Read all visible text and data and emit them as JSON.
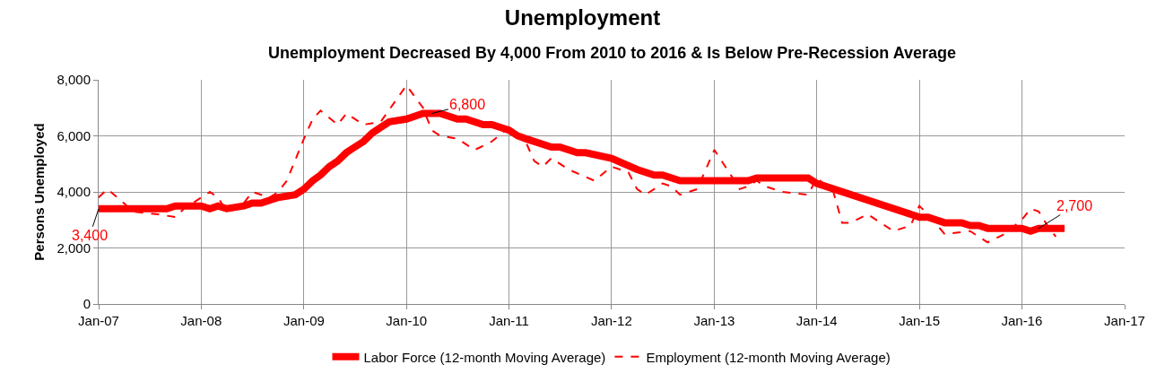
{
  "chart_data": {
    "type": "line",
    "title": "Unemployment",
    "subtitle": "Unemployment Decreased By 4,000 From 2010 to 2016 & Is Below Pre-Recession Average",
    "ylabel": "Persons Unemployed",
    "xlim": [
      "2007-01-01",
      "2017-01-01"
    ],
    "xticks": [
      {
        "value": "2007-01-01",
        "label": "Jan-07"
      },
      {
        "value": "2008-01-01",
        "label": "Jan-08"
      },
      {
        "value": "2009-01-01",
        "label": "Jan-09"
      },
      {
        "value": "2010-01-01",
        "label": "Jan-10"
      },
      {
        "value": "2011-01-01",
        "label": "Jan-11"
      },
      {
        "value": "2012-01-01",
        "label": "Jan-12"
      },
      {
        "value": "2013-01-01",
        "label": "Jan-13"
      },
      {
        "value": "2014-01-01",
        "label": "Jan-14"
      },
      {
        "value": "2015-01-01",
        "label": "Jan-15"
      },
      {
        "value": "2016-01-01",
        "label": "Jan-16"
      },
      {
        "value": "2017-01-01",
        "label": "Jan-17"
      }
    ],
    "ylim": [
      0,
      8000
    ],
    "yticks": [
      0,
      {
        "value": 2000,
        "label": "2,000"
      },
      {
        "value": 4000,
        "label": "4,000"
      },
      {
        "value": 6000,
        "label": "6,000"
      },
      {
        "value": 8000,
        "label": "8,000"
      }
    ],
    "grid": true,
    "legend": "bottom",
    "marker": "none",
    "series": [
      {
        "name": "Employment (12-month Moving Average)",
        "color": "#ff0000",
        "line_style": "dashed",
        "x": [
          "2007-01",
          "2007-02",
          "2007-04",
          "2007-05",
          "2007-08",
          "2007-10",
          "2007-11",
          "2008-02",
          "2008-03",
          "2008-04",
          "2008-06",
          "2008-07",
          "2008-09",
          "2008-10",
          "2008-11",
          "2009-01",
          "2009-02",
          "2009-03",
          "2009-05",
          "2009-06",
          "2009-08",
          "2009-10",
          "2010-01",
          "2010-03",
          "2010-04",
          "2010-05",
          "2010-07",
          "2010-09",
          "2010-11",
          "2011-01",
          "2011-03",
          "2011-04",
          "2011-05",
          "2011-06",
          "2011-08",
          "2011-11",
          "2012-01",
          "2012-03",
          "2012-04",
          "2012-05",
          "2012-07",
          "2012-08",
          "2012-09",
          "2012-11",
          "2013-01",
          "2013-03",
          "2013-04",
          "2013-05",
          "2013-06",
          "2013-07",
          "2013-09",
          "2013-12",
          "2014-01",
          "2014-03",
          "2014-04",
          "2014-05",
          "2014-07",
          "2014-10",
          "2014-12",
          "2015-01",
          "2015-02",
          "2015-04",
          "2015-07",
          "2015-09",
          "2015-11",
          "2016-01",
          "2016-02",
          "2016-03",
          "2016-04",
          "2016-05"
        ],
        "values": [
          3800,
          4100,
          3600,
          3300,
          3200,
          3100,
          3400,
          4000,
          3800,
          3300,
          3600,
          4000,
          3800,
          4000,
          4400,
          5900,
          6600,
          6900,
          6400,
          6800,
          6400,
          6500,
          7800,
          7000,
          6200,
          6000,
          5900,
          5500,
          5800,
          6300,
          5800,
          5100,
          4900,
          5200,
          4800,
          4400,
          4900,
          4700,
          4100,
          3900,
          4300,
          4200,
          3900,
          4100,
          5500,
          4600,
          4100,
          4200,
          4400,
          4200,
          4000,
          3900,
          4500,
          4000,
          2900,
          2900,
          3200,
          2600,
          2800,
          3500,
          3200,
          2500,
          2600,
          2200,
          2500,
          3000,
          3400,
          3300,
          2800,
          2400
        ]
      },
      {
        "name": "Labor Force (12-month Moving Average)",
        "color": "#ff0000",
        "line_style": "solid",
        "x": [
          "2007-01",
          "2007-09",
          "2007-10",
          "2008-01",
          "2008-02",
          "2008-03",
          "2008-04",
          "2008-06",
          "2008-07",
          "2008-08",
          "2008-10",
          "2008-12",
          "2009-01",
          "2009-02",
          "2009-03",
          "2009-04",
          "2009-05",
          "2009-06",
          "2009-07",
          "2009-08",
          "2009-09",
          "2009-10",
          "2009-11",
          "2010-01",
          "2010-03",
          "2010-05",
          "2010-07",
          "2010-08",
          "2010-10",
          "2010-11",
          "2011-01",
          "2011-02",
          "2011-03",
          "2011-06",
          "2011-07",
          "2011-09",
          "2011-10",
          "2012-01",
          "2012-04",
          "2012-06",
          "2012-07",
          "2012-09",
          "2013-05",
          "2013-06",
          "2013-12",
          "2014-01",
          "2015-01",
          "2015-02",
          "2015-04",
          "2015-06",
          "2015-07",
          "2015-08",
          "2015-09",
          "2016-01",
          "2016-02",
          "2016-03",
          "2016-06"
        ],
        "values": [
          3400,
          3400,
          3500,
          3500,
          3400,
          3500,
          3400,
          3500,
          3600,
          3600,
          3800,
          3900,
          4100,
          4400,
          4600,
          4900,
          5100,
          5400,
          5600,
          5800,
          6100,
          6300,
          6500,
          6600,
          6800,
          6800,
          6600,
          6600,
          6400,
          6400,
          6200,
          6000,
          5900,
          5600,
          5600,
          5400,
          5400,
          5200,
          4800,
          4600,
          4600,
          4400,
          4400,
          4500,
          4500,
          4300,
          3100,
          3100,
          2900,
          2900,
          2800,
          2800,
          2700,
          2700,
          2600,
          2700,
          2700
        ]
      }
    ],
    "annotations": [
      {
        "text": "3,400",
        "x": "2007-01",
        "y": 3400
      },
      {
        "text": "6,800",
        "x": "2010-04",
        "y": 6800
      },
      {
        "text": "2,700",
        "x": "2016-03",
        "y": 2700
      }
    ]
  }
}
